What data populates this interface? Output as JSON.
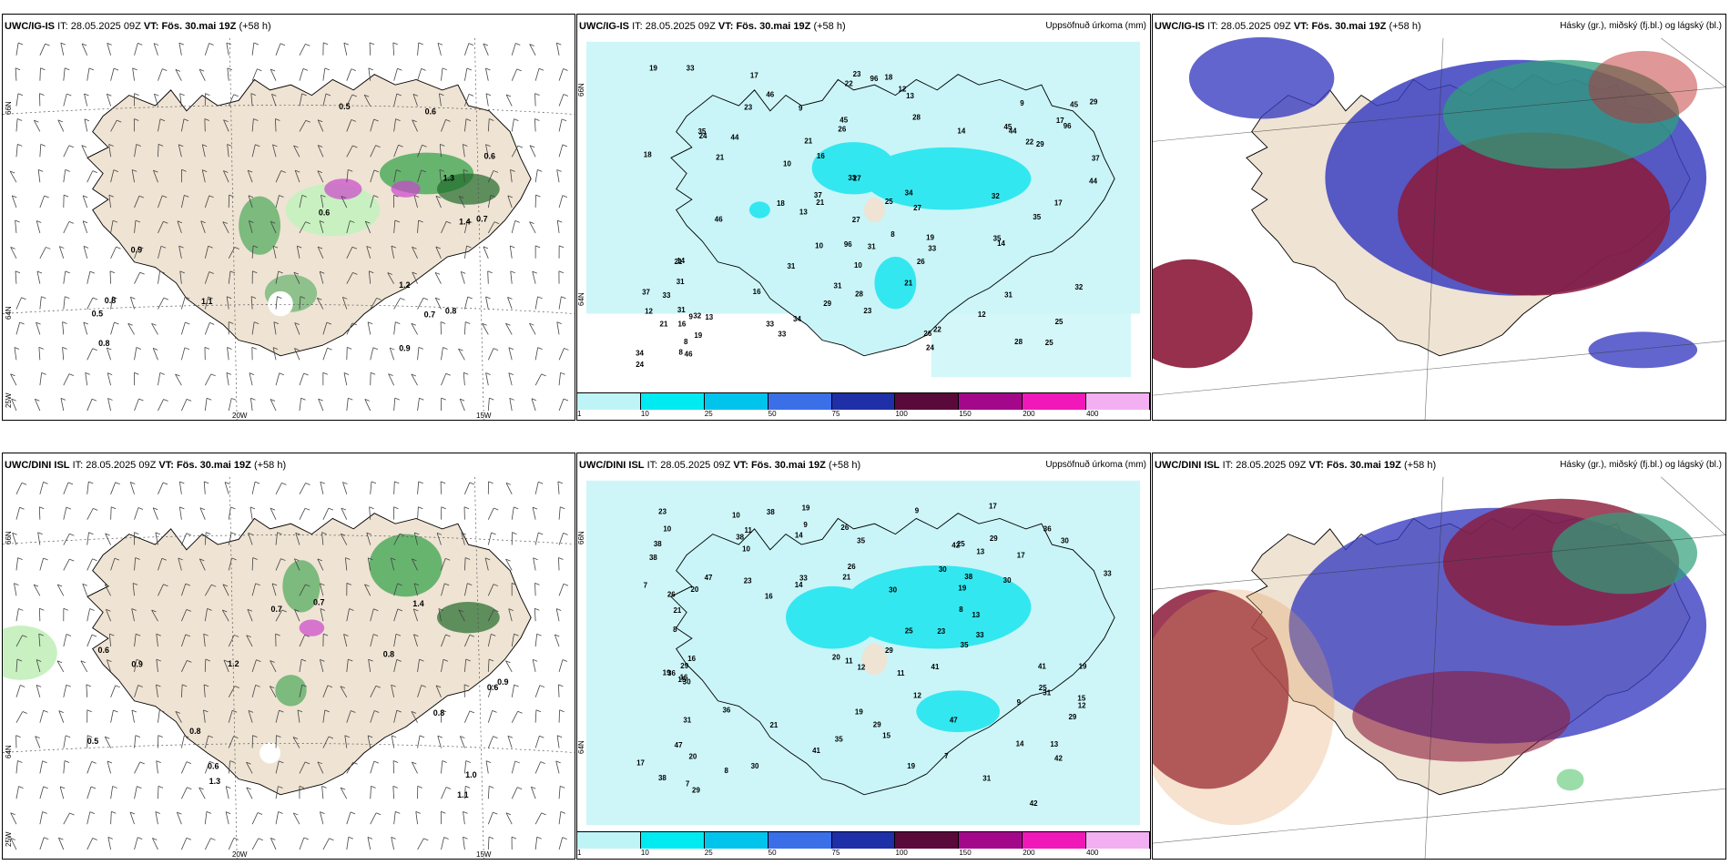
{
  "panels": {
    "top_left": {
      "model": "UWC/IG-IS",
      "it_label": "IT:",
      "it": "28.05.2025 09Z",
      "vt_label": "VT:",
      "vt": "Fös. 30.mai 19Z",
      "lead": "(+58 h)",
      "right_title": ""
    },
    "top_mid": {
      "model": "UWC/IG-IS",
      "it_label": "IT:",
      "it": "28.05.2025 09Z",
      "vt_label": "VT:",
      "vt": "Fös. 30.mai 19Z",
      "lead": "(+58 h)",
      "right_title": "Uppsöfnuð úrkoma (mm)"
    },
    "top_right": {
      "model": "UWC/IG-IS",
      "it_label": "IT:",
      "it": "28.05.2025 09Z",
      "vt_label": "VT:",
      "vt": "Fös. 30.mai 19Z",
      "lead": "(+58 h)",
      "right_title": "Hásky (gr.), miðský (fj.bl.) og lágský (bl.)"
    },
    "bottom_left": {
      "model": "UWC/DINI ISL",
      "it_label": "IT:",
      "it": "28.05.2025 09Z",
      "vt_label": "VT:",
      "vt": "Fös. 30.mai 19Z",
      "lead": "(+58 h)",
      "right_title": ""
    },
    "bottom_mid": {
      "model": "UWC/DINI ISL",
      "it_label": "IT:",
      "it": "28.05.2025 09Z",
      "vt_label": "VT:",
      "vt": "Fös. 30.mai 19Z",
      "lead": "(+58 h)",
      "right_title": "Uppsöfnuð úrkoma (mm)"
    },
    "bottom_right": {
      "model": "UWC/DINI ISL",
      "it_label": "IT:",
      "it": "28.05.2025 09Z",
      "vt_label": "VT:",
      "vt": "Fös. 30.mai 19Z",
      "lead": "(+58 h)",
      "right_title": "Hásky (gr.), miðský (fj.bl.) og lágský (bl.)"
    }
  },
  "axis_labels": {
    "lat66": "66N",
    "lat64": "64N",
    "lon25": "25W",
    "lon20": "20W",
    "lon15": "15W"
  },
  "colorbar": {
    "ticks": [
      "1",
      "10",
      "25",
      "50",
      "75",
      "100",
      "150",
      "200",
      "400"
    ],
    "colors": [
      "#bff4f6",
      "#00eaf2",
      "#00c4ec",
      "#3a6fe8",
      "#1f2fa8",
      "#5a0a3a",
      "#a4088a",
      "#f018b8",
      "#f2b0f2"
    ]
  },
  "colors": {
    "land": "#efe3d3",
    "water": "#ffffff",
    "precip_light": "#c9f5f8",
    "precip_mid": "#33e7f0",
    "green": "#2e9f44",
    "magenta": "#cc44cc",
    "cloud_high": "#2f9f7a",
    "cloud_mid": "#8b1a3a",
    "cloud_low": "#3b3fc0"
  },
  "precip_values_top": [
    "23",
    "17",
    "21",
    "28",
    "31",
    "24",
    "27",
    "33",
    "31",
    "45",
    "44",
    "46",
    "35",
    "29",
    "34",
    "12",
    "19",
    "22",
    "18",
    "26",
    "14",
    "37",
    "32",
    "33",
    "96",
    "25",
    "16",
    "21",
    "13",
    "9",
    "8",
    "10"
  ],
  "precip_values_bottom": [
    "17",
    "23",
    "19",
    "25",
    "29",
    "33",
    "38",
    "41",
    "47",
    "36",
    "30",
    "31",
    "35",
    "38",
    "16",
    "29",
    "15",
    "11",
    "30",
    "42",
    "26",
    "21",
    "19",
    "20",
    "10",
    "12",
    "13",
    "14",
    "9",
    "8",
    "7"
  ],
  "wind_values_top": [
    "0.6",
    "0.8",
    "0.5",
    "1.1",
    "0.7",
    "0.9",
    "0.6",
    "1.2",
    "0.8",
    "1.4",
    "0.5",
    "0.9",
    "1.3",
    "0.7",
    "0.6",
    "0.8"
  ],
  "wind_values_bottom": [
    "0.6",
    "0.5",
    "0.8",
    "0.9",
    "1.2",
    "0.7",
    "0.6",
    "1.1",
    "0.8",
    "1.0",
    "0.9",
    "0.7",
    "1.3",
    "0.6",
    "0.8",
    "1.4"
  ]
}
